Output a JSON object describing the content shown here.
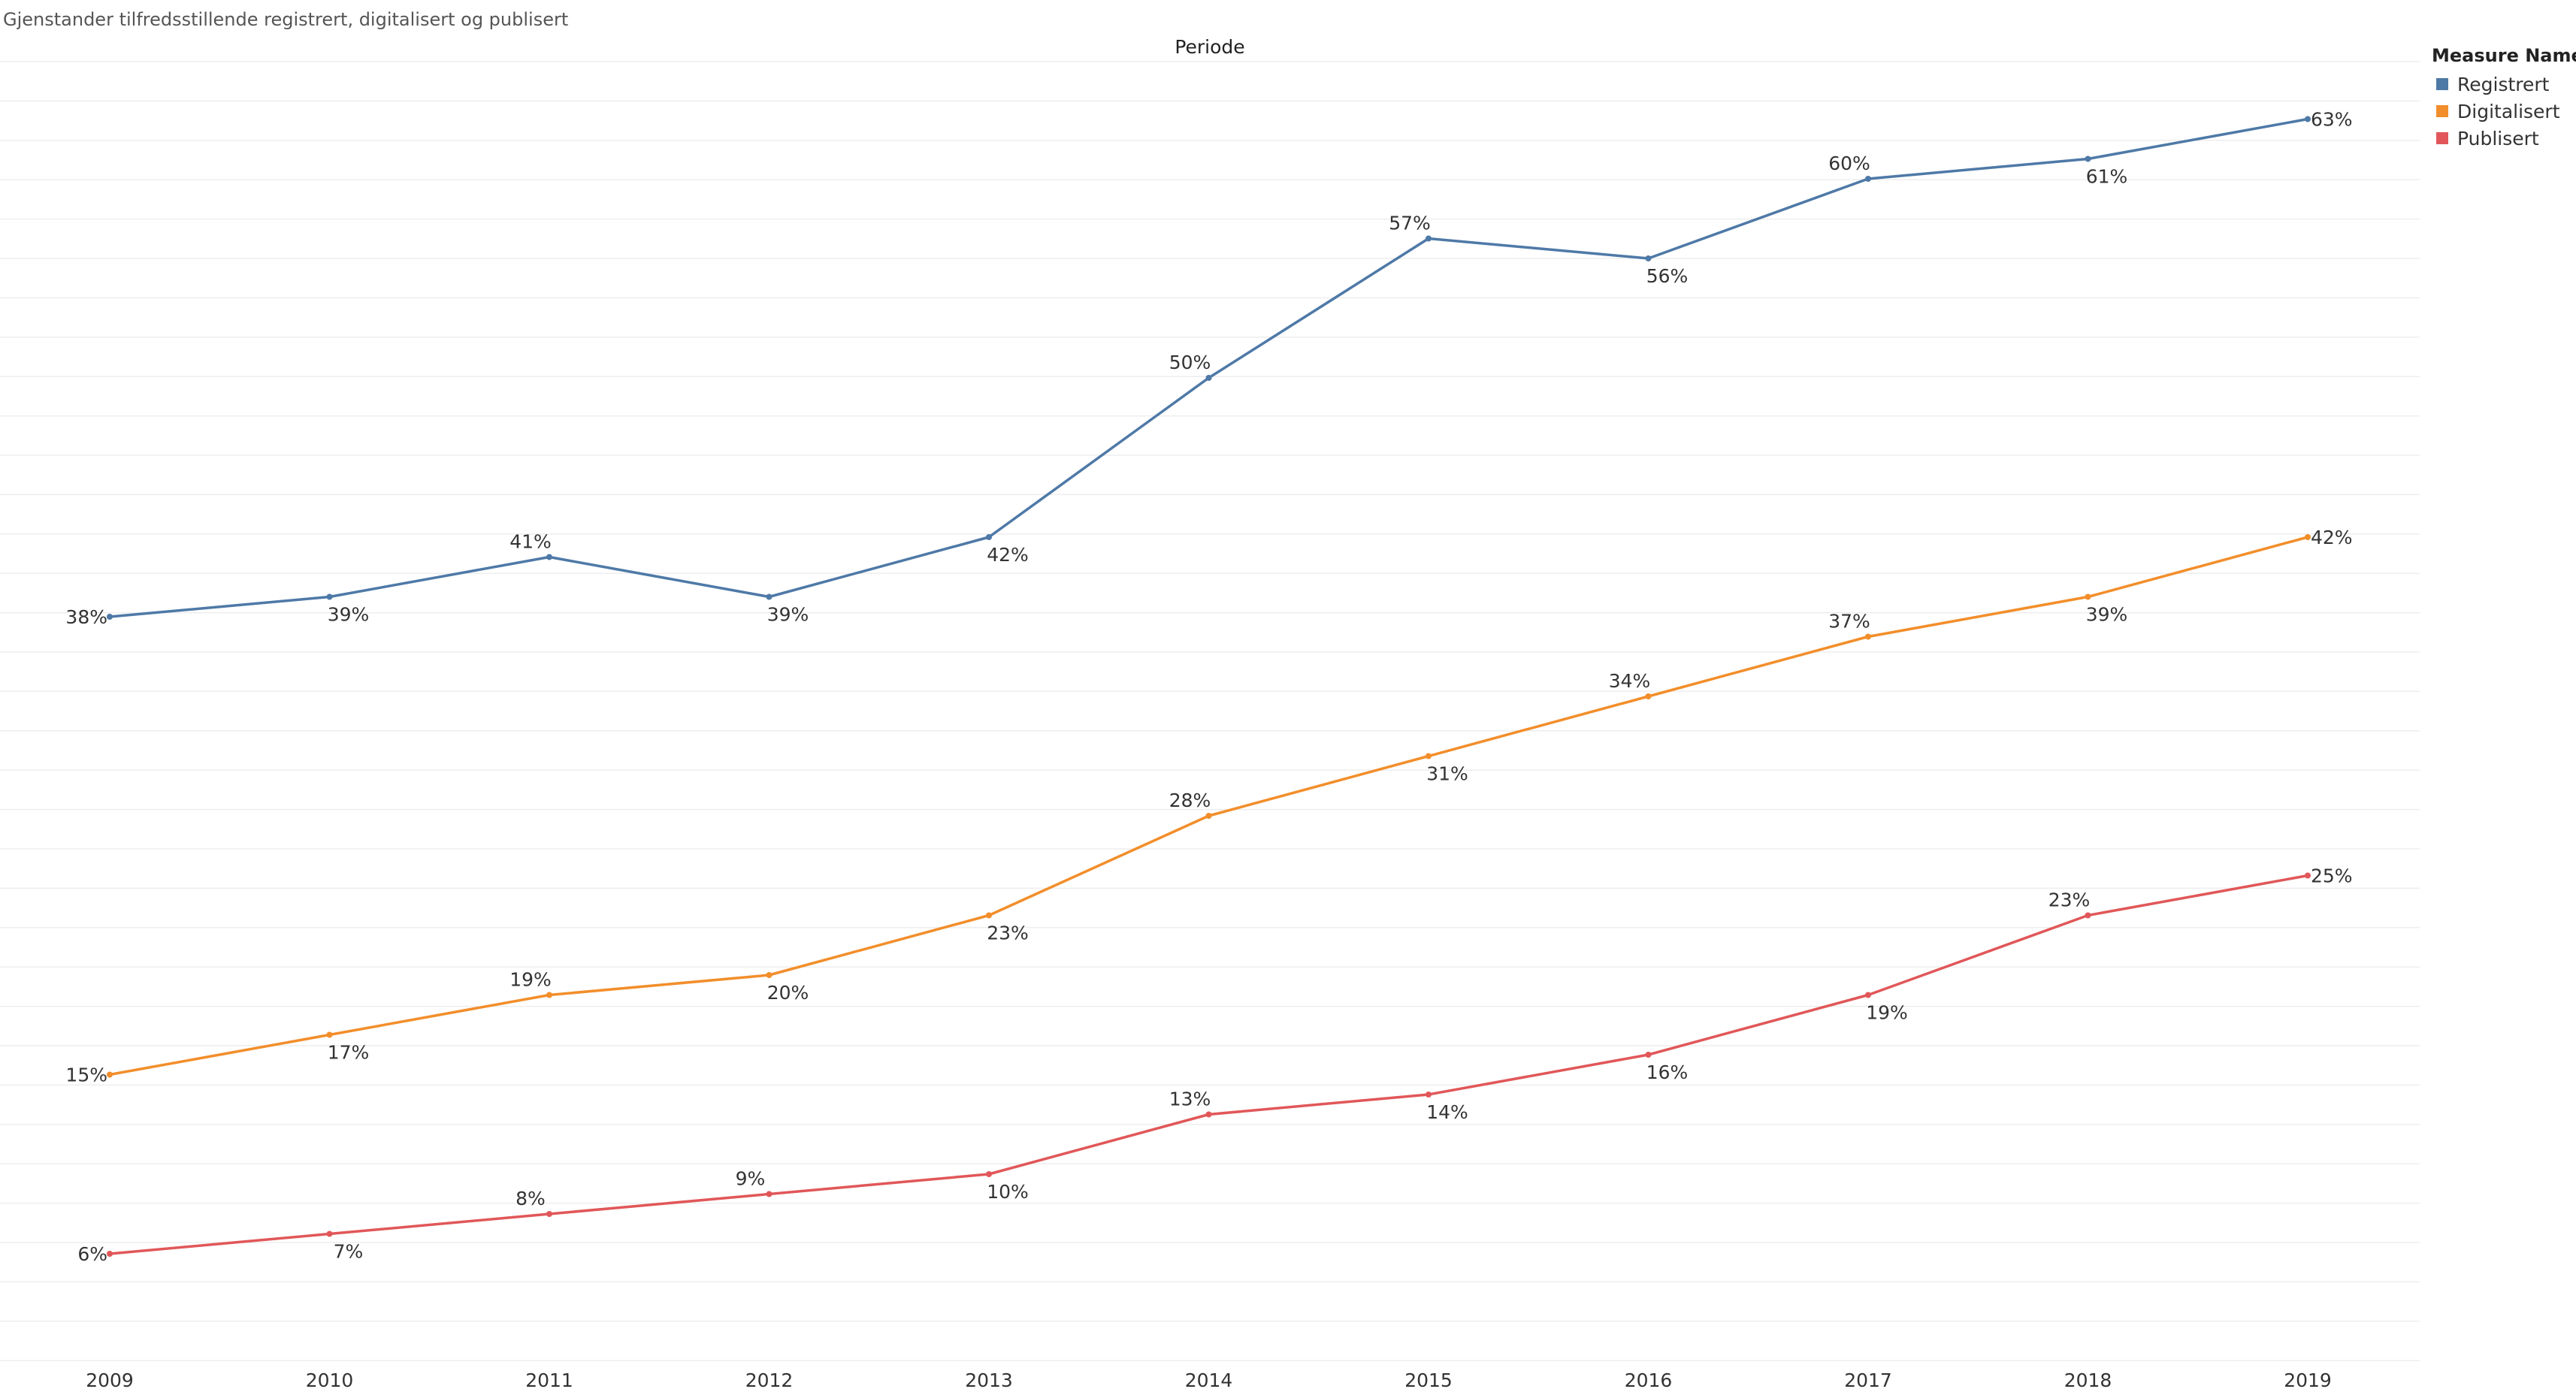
{
  "title": "Gjenstander tilfredsstillende registrert, digitalisert og publisert",
  "legend_title": "Measure Names",
  "chart_data": {
    "type": "line",
    "title": "Gjenstander tilfredsstillende registrert, digitalisert og publisert",
    "xlabel": "Periode",
    "ylabel": "",
    "x": [
      "2009",
      "2010",
      "2011",
      "2012",
      "2013",
      "2014",
      "2015",
      "2016",
      "2017",
      "2018",
      "2019"
    ],
    "ylim": [
      0,
      70
    ],
    "grid": true,
    "legend_position": "top-right",
    "series": [
      {
        "name": "Registrert",
        "color": "#4e79a7",
        "values": [
          38,
          39,
          41,
          39,
          42,
          50,
          57,
          56,
          60,
          61,
          63
        ]
      },
      {
        "name": "Digitalisert",
        "color": "#f28e2b",
        "values": [
          15,
          17,
          19,
          20,
          23,
          28,
          31,
          34,
          37,
          39,
          42
        ]
      },
      {
        "name": "Publisert",
        "color": "#e15759",
        "values": [
          6,
          7,
          8,
          9,
          10,
          13,
          14,
          16,
          19,
          23,
          25
        ]
      }
    ]
  }
}
